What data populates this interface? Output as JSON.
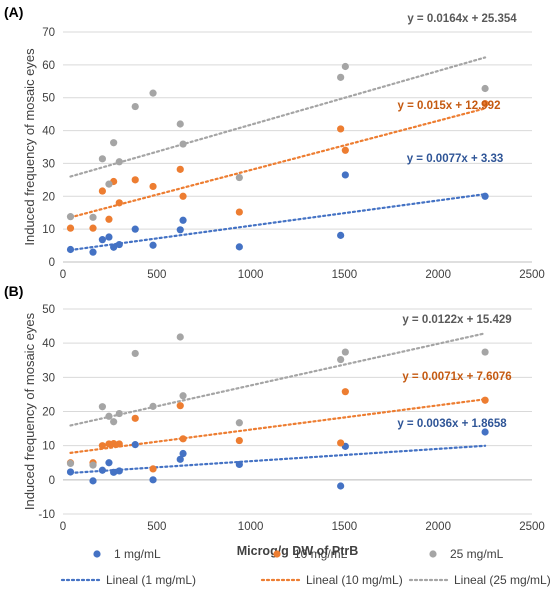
{
  "chart_data": [
    {
      "type": "scatter",
      "panel_label": "(A)",
      "ylabel": "Induced frequency of mosaic eyes",
      "xlim": [
        0,
        2500
      ],
      "ylim": [
        0,
        70
      ],
      "x_ticks": [
        "0",
        "500",
        "1000",
        "1500",
        "2000",
        "2500"
      ],
      "y_ticks": [
        "0",
        "10",
        "20",
        "30",
        "40",
        "50",
        "60",
        "70"
      ],
      "series": [
        {
          "name": "1 mg/mL",
          "color": "#4472C4",
          "points": [
            [
              40,
              3.8
            ],
            [
              160,
              3
            ],
            [
              210,
              6.8
            ],
            [
              245,
              7.6
            ],
            [
              270,
              4.5
            ],
            [
              300,
              5.3
            ],
            [
              385,
              10
            ],
            [
              480,
              5.1
            ],
            [
              625,
              9.8
            ],
            [
              640,
              12.7
            ],
            [
              940,
              4.6
            ],
            [
              1480,
              8.1
            ],
            [
              1505,
              26.5
            ],
            [
              2250,
              20
            ]
          ]
        },
        {
          "name": "10 mg/mL",
          "color": "#ED7D31",
          "points": [
            [
              40,
              10.3
            ],
            [
              160,
              10.3
            ],
            [
              210,
              21.6
            ],
            [
              245,
              13
            ],
            [
              270,
              24.5
            ],
            [
              300,
              18
            ],
            [
              385,
              25
            ],
            [
              480,
              23
            ],
            [
              625,
              28.2
            ],
            [
              640,
              20
            ],
            [
              940,
              15.2
            ],
            [
              1480,
              40.5
            ],
            [
              1505,
              34
            ],
            [
              2250,
              48.2
            ]
          ]
        },
        {
          "name": "25 mg/mL",
          "color": "#A5A5A5",
          "points": [
            [
              40,
              13.8
            ],
            [
              160,
              13.6
            ],
            [
              210,
              31.4
            ],
            [
              245,
              23.7
            ],
            [
              270,
              36.3
            ],
            [
              300,
              30.5
            ],
            [
              385,
              47.3
            ],
            [
              480,
              51.4
            ],
            [
              625,
              42
            ],
            [
              640,
              35.9
            ],
            [
              940,
              25.7
            ],
            [
              1480,
              56.2
            ],
            [
              1505,
              59.5
            ],
            [
              2250,
              52.8
            ]
          ]
        }
      ],
      "trendlines": [
        {
          "name": "Lineal (1 mg/mL)",
          "slope": 0.0077,
          "intercept": 3.33,
          "label": "y = 0.0077x + 3.33",
          "color": "#4472C4",
          "label_color": "#2F5597"
        },
        {
          "name": "Lineal (10 mg/mL)",
          "slope": 0.015,
          "intercept": 12.992,
          "label": "y = 0.015x + 12.992",
          "color": "#ED7D31",
          "label_color": "#C55A11"
        },
        {
          "name": "Lineal (25 mg/mL)",
          "slope": 0.0164,
          "intercept": 25.354,
          "label": "y = 0.0164x + 25.354",
          "color": "#A5A5A5",
          "label_color": "#595959"
        }
      ]
    },
    {
      "type": "scatter",
      "panel_label": "(B)",
      "ylabel": "Induced frequency of mosaic eyes",
      "xlabel": "Microg/g DW of PtrB",
      "xlim": [
        0,
        2500
      ],
      "ylim": [
        -10,
        50
      ],
      "x_ticks": [
        "0",
        "500",
        "1000",
        "1500",
        "2000",
        "2500"
      ],
      "y_ticks": [
        "-10",
        "0",
        "10",
        "20",
        "30",
        "40",
        "50"
      ],
      "series": [
        {
          "name": "1 mg/mL",
          "color": "#4472C4",
          "points": [
            [
              40,
              2.3
            ],
            [
              160,
              -0.3
            ],
            [
              210,
              2.8
            ],
            [
              245,
              5
            ],
            [
              270,
              2.2
            ],
            [
              300,
              2.6
            ],
            [
              385,
              10.3
            ],
            [
              480,
              0
            ],
            [
              625,
              6
            ],
            [
              640,
              7.7
            ],
            [
              940,
              4.5
            ],
            [
              1480,
              -1.8
            ],
            [
              1505,
              9.8
            ],
            [
              2250,
              14
            ]
          ]
        },
        {
          "name": "10 mg/mL",
          "color": "#ED7D31",
          "points": [
            [
              40,
              5
            ],
            [
              160,
              5
            ],
            [
              210,
              10
            ],
            [
              245,
              10.5
            ],
            [
              270,
              10.6
            ],
            [
              300,
              10.5
            ],
            [
              385,
              18
            ],
            [
              480,
              3.2
            ],
            [
              625,
              21.7
            ],
            [
              640,
              12
            ],
            [
              940,
              11.5
            ],
            [
              1480,
              10.8
            ],
            [
              1505,
              25.8
            ],
            [
              2250,
              23.3
            ]
          ]
        },
        {
          "name": "25 mg/mL",
          "color": "#A5A5A5",
          "points": [
            [
              40,
              4.8
            ],
            [
              160,
              4.3
            ],
            [
              210,
              21.4
            ],
            [
              245,
              18.6
            ],
            [
              270,
              17
            ],
            [
              300,
              19.4
            ],
            [
              385,
              37
            ],
            [
              480,
              21.5
            ],
            [
              625,
              41.8
            ],
            [
              640,
              24.6
            ],
            [
              940,
              16.7
            ],
            [
              1480,
              35.2
            ],
            [
              1505,
              37.4
            ],
            [
              2250,
              37.4
            ]
          ]
        }
      ],
      "trendlines": [
        {
          "name": "Lineal (1 mg/mL)",
          "slope": 0.0036,
          "intercept": 1.8658,
          "label": "y = 0.0036x + 1.8658",
          "color": "#4472C4",
          "label_color": "#2F5597"
        },
        {
          "name": "Lineal (10 mg/mL)",
          "slope": 0.0071,
          "intercept": 7.6076,
          "label": "y = 0.0071x + 7.6076",
          "color": "#ED7D31",
          "label_color": "#C55A11"
        },
        {
          "name": "Lineal (25 mg/mL)",
          "slope": 0.0122,
          "intercept": 15.429,
          "label": "y = 0.0122x + 15.429",
          "color": "#A5A5A5",
          "label_color": "#595959"
        }
      ]
    }
  ],
  "legend": {
    "placement": "bottom",
    "items": [
      {
        "label": "1 mg/mL",
        "kind": "marker",
        "color": "#4472C4"
      },
      {
        "label": "10 mg/mL",
        "kind": "marker",
        "color": "#ED7D31"
      },
      {
        "label": "25 mg/mL",
        "kind": "marker",
        "color": "#A5A5A5"
      },
      {
        "label": "Lineal (1 mg/mL)",
        "kind": "line",
        "color": "#4472C4"
      },
      {
        "label": "Lineal (10 mg/mL)",
        "kind": "line",
        "color": "#ED7D31"
      },
      {
        "label": "Lineal (25 mg/mL)",
        "kind": "line",
        "color": "#A5A5A5"
      }
    ]
  }
}
